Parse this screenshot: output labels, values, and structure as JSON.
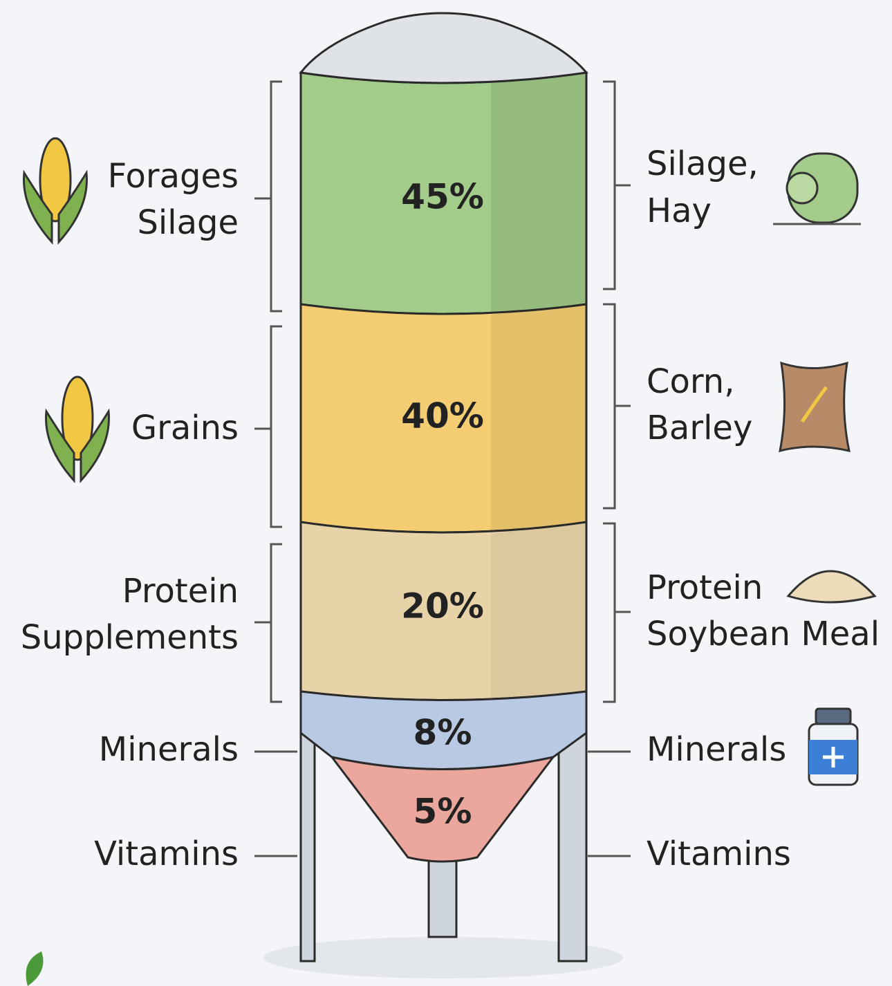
{
  "layers": [
    {
      "percent": "45%",
      "left": [
        "Forages",
        "Silage"
      ],
      "right": [
        "Silage,",
        "Hay"
      ]
    },
    {
      "percent": "40%",
      "left": [
        "Grains"
      ],
      "right": [
        "Corn,",
        "Barley"
      ]
    },
    {
      "percent": "20%",
      "left": [
        "Protein",
        "Supplements"
      ],
      "right": [
        "Protein",
        "Soybean Meal"
      ]
    },
    {
      "percent": "8%",
      "left": [
        "Minerals"
      ],
      "right": [
        "Minerals"
      ]
    },
    {
      "percent": "5%",
      "left": [
        "Vitamins"
      ],
      "right": [
        "Vitamins"
      ]
    }
  ]
}
